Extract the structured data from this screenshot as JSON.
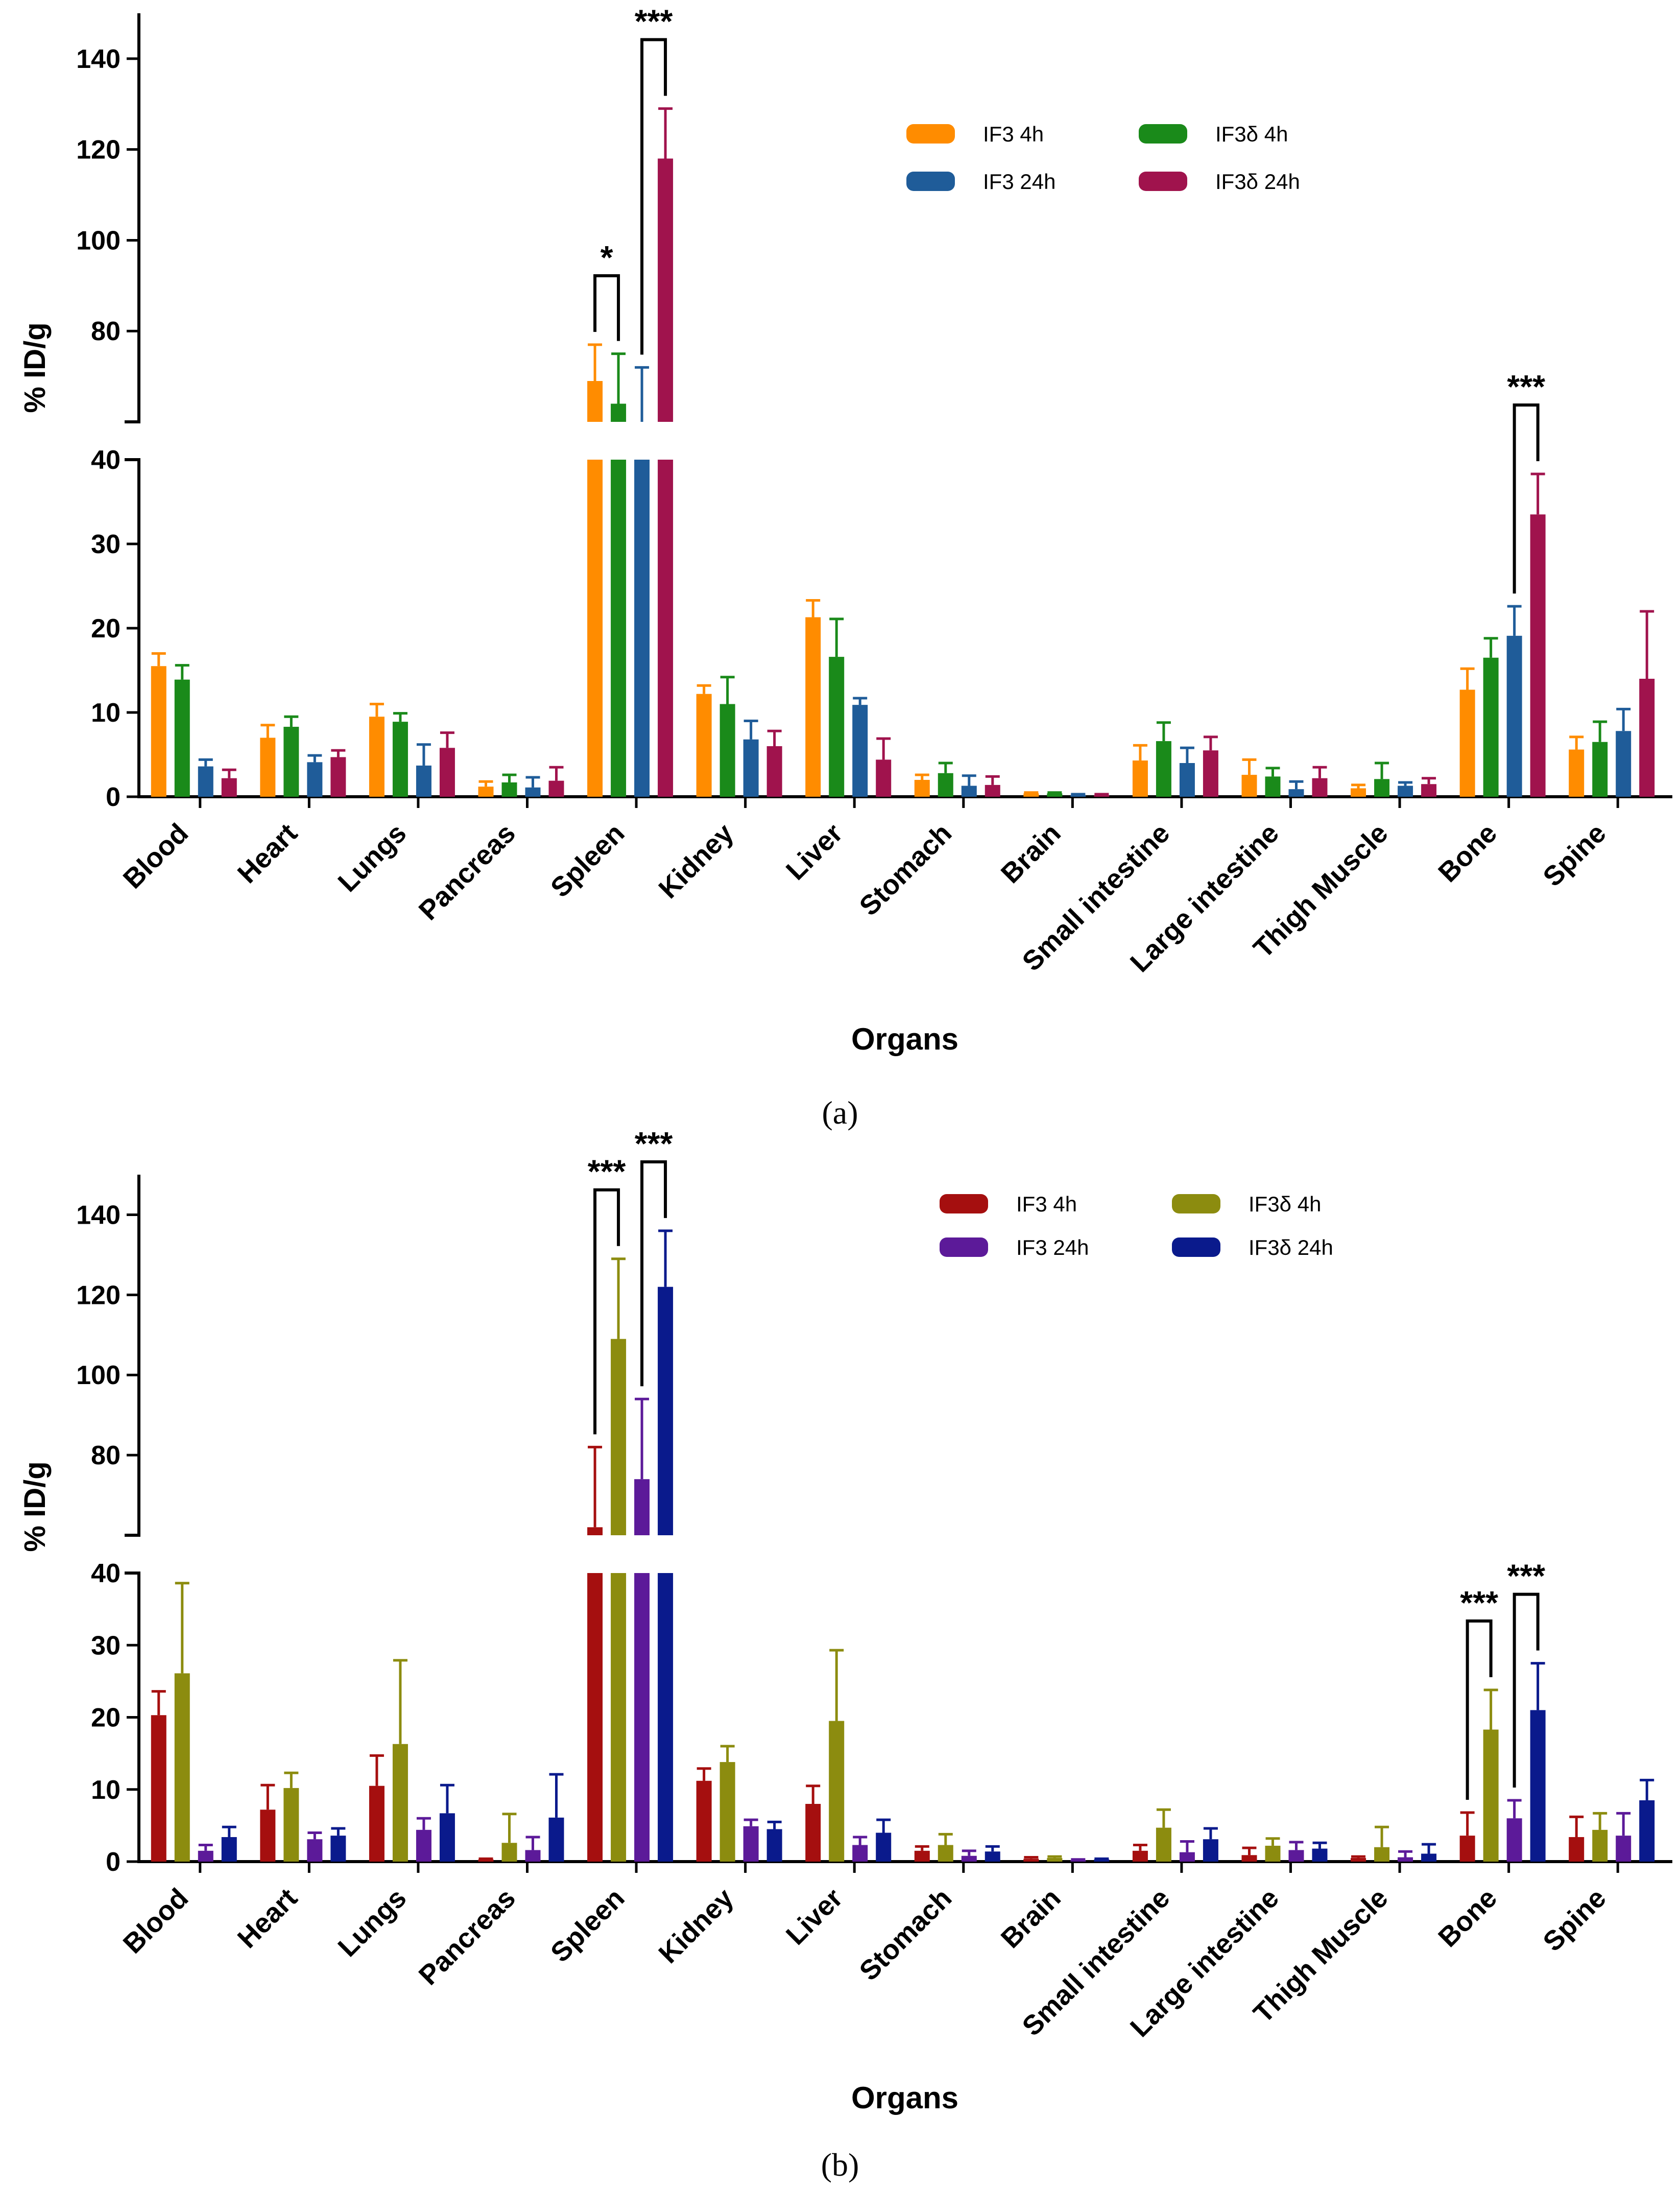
{
  "chart_data": [
    {
      "type": "bar",
      "panel_label": "(a)",
      "xlabel": "Organs",
      "ylabel": "% ID/g",
      "y_axis_break": {
        "lower": [
          0,
          40
        ],
        "upper": [
          60,
          150
        ]
      },
      "y_ticks_lower": [
        0,
        10,
        20,
        30,
        40
      ],
      "y_ticks_upper": [
        80,
        100,
        120,
        140
      ],
      "legend_position": "top-right",
      "categories": [
        "Blood",
        "Heart",
        "Lungs",
        "Pancreas",
        "Spleen",
        "Kidney",
        "Liver",
        "Stomach",
        "Brain",
        "Small intestine",
        "Large intestine",
        "Thigh Muscle",
        "Bone",
        "Spine"
      ],
      "series": [
        {
          "name": "IF3 4h",
          "color": "#ff8c00",
          "values": [
            15.5,
            7.0,
            9.5,
            1.2,
            69,
            12.2,
            21.3,
            2.0,
            0.4,
            4.3,
            2.6,
            1.0,
            12.7,
            5.6
          ],
          "errors": [
            1.5,
            1.5,
            1.5,
            0.6,
            8,
            1.0,
            2.0,
            0.6,
            0.1,
            1.8,
            1.8,
            0.4,
            2.5,
            1.5
          ]
        },
        {
          "name": "IF3δ 4h",
          "color": "#1a8a1a",
          "values": [
            13.9,
            8.3,
            8.9,
            1.7,
            64,
            11.0,
            16.6,
            2.8,
            0.4,
            6.6,
            2.4,
            2.1,
            16.5,
            6.5
          ],
          "errors": [
            1.7,
            1.2,
            1.0,
            0.9,
            11,
            3.2,
            4.5,
            1.2,
            0.1,
            2.2,
            1.0,
            1.9,
            2.3,
            2.4
          ]
        },
        {
          "name": "IF3 24h",
          "color": "#1f5c99",
          "values": [
            3.6,
            4.1,
            3.7,
            1.1,
            60,
            6.8,
            10.9,
            1.3,
            0.2,
            4.0,
            0.9,
            1.3,
            19.1,
            7.8
          ],
          "errors": [
            0.8,
            0.8,
            2.5,
            1.2,
            12,
            2.2,
            0.8,
            1.2,
            0.1,
            1.8,
            0.9,
            0.4,
            3.5,
            2.6
          ]
        },
        {
          "name": "IF3δ 24h",
          "color": "#a0134d",
          "values": [
            2.2,
            4.7,
            5.8,
            1.9,
            118,
            6.0,
            4.4,
            1.4,
            0.2,
            5.5,
            2.2,
            1.5,
            33.5,
            14.0
          ],
          "errors": [
            1.0,
            0.8,
            1.8,
            1.6,
            11,
            1.8,
            2.5,
            1.0,
            0.1,
            1.6,
            1.3,
            0.7,
            4.8,
            8.0
          ]
        }
      ],
      "legend_order": [
        0,
        2,
        1,
        3
      ],
      "significance": [
        {
          "category": "Spleen",
          "from_series": 0,
          "to_series": 1,
          "label": "*"
        },
        {
          "category": "Spleen",
          "from_series": 2,
          "to_series": 3,
          "label": "***"
        },
        {
          "category": "Bone",
          "from_series": 2,
          "to_series": 3,
          "label": "***"
        }
      ]
    },
    {
      "type": "bar",
      "panel_label": "(b)",
      "xlabel": "Organs",
      "ylabel": "% ID/g",
      "y_axis_break": {
        "lower": [
          0,
          40
        ],
        "upper": [
          60,
          150
        ]
      },
      "y_ticks_lower": [
        0,
        10,
        20,
        30,
        40
      ],
      "y_ticks_upper": [
        80,
        100,
        120,
        140
      ],
      "legend_position": "top-right",
      "categories": [
        "Blood",
        "Heart",
        "Lungs",
        "Pancreas",
        "Spleen",
        "Kidney",
        "Liver",
        "Stomach",
        "Brain",
        "Small intestine",
        "Large intestine",
        "Thigh Muscle",
        "Bone",
        "Spine"
      ],
      "series": [
        {
          "name": "IF3 4h",
          "color": "#a50f0f",
          "values": [
            20.3,
            7.2,
            10.5,
            0.3,
            62,
            11.2,
            8.0,
            1.5,
            0.4,
            1.5,
            0.9,
            0.5,
            3.6,
            3.4
          ],
          "errors": [
            3.3,
            3.4,
            4.2,
            0.1,
            20,
            1.7,
            2.5,
            0.6,
            0.2,
            0.8,
            1.0,
            0.2,
            3.2,
            2.8
          ]
        },
        {
          "name": "IF3δ 4h",
          "color": "#8c8c0f",
          "values": [
            26.1,
            10.2,
            16.3,
            2.6,
            109,
            13.8,
            19.5,
            2.3,
            0.5,
            4.7,
            2.2,
            2.0,
            18.3,
            4.4
          ],
          "errors": [
            12.5,
            2.1,
            11.6,
            4.0,
            20,
            2.2,
            9.8,
            1.5,
            0.2,
            2.5,
            1.0,
            2.8,
            5.5,
            2.3
          ]
        },
        {
          "name": "IF3 24h",
          "color": "#5c1a99",
          "values": [
            1.5,
            3.1,
            4.4,
            1.6,
            74,
            4.9,
            2.3,
            0.8,
            0.2,
            1.3,
            1.6,
            0.6,
            6.0,
            3.6
          ],
          "errors": [
            0.8,
            0.9,
            1.6,
            1.8,
            20,
            0.9,
            1.1,
            0.7,
            0.1,
            1.5,
            1.1,
            0.8,
            2.5,
            3.1
          ]
        },
        {
          "name": "IF3δ 24h",
          "color": "#0a1a8c",
          "values": [
            3.4,
            3.6,
            6.7,
            6.1,
            122,
            4.5,
            4.0,
            1.4,
            0.3,
            3.1,
            1.8,
            1.1,
            21.0,
            8.5
          ],
          "errors": [
            1.4,
            1.0,
            3.9,
            6.0,
            14,
            1.0,
            1.8,
            0.7,
            0.1,
            1.5,
            0.8,
            1.3,
            6.5,
            2.8
          ]
        }
      ],
      "legend_order": [
        0,
        2,
        1,
        3
      ],
      "significance": [
        {
          "category": "Spleen",
          "from_series": 0,
          "to_series": 1,
          "label": "***"
        },
        {
          "category": "Spleen",
          "from_series": 2,
          "to_series": 3,
          "label": "***"
        },
        {
          "category": "Bone",
          "from_series": 0,
          "to_series": 1,
          "label": "***"
        },
        {
          "category": "Bone",
          "from_series": 2,
          "to_series": 3,
          "label": "***"
        }
      ]
    }
  ]
}
